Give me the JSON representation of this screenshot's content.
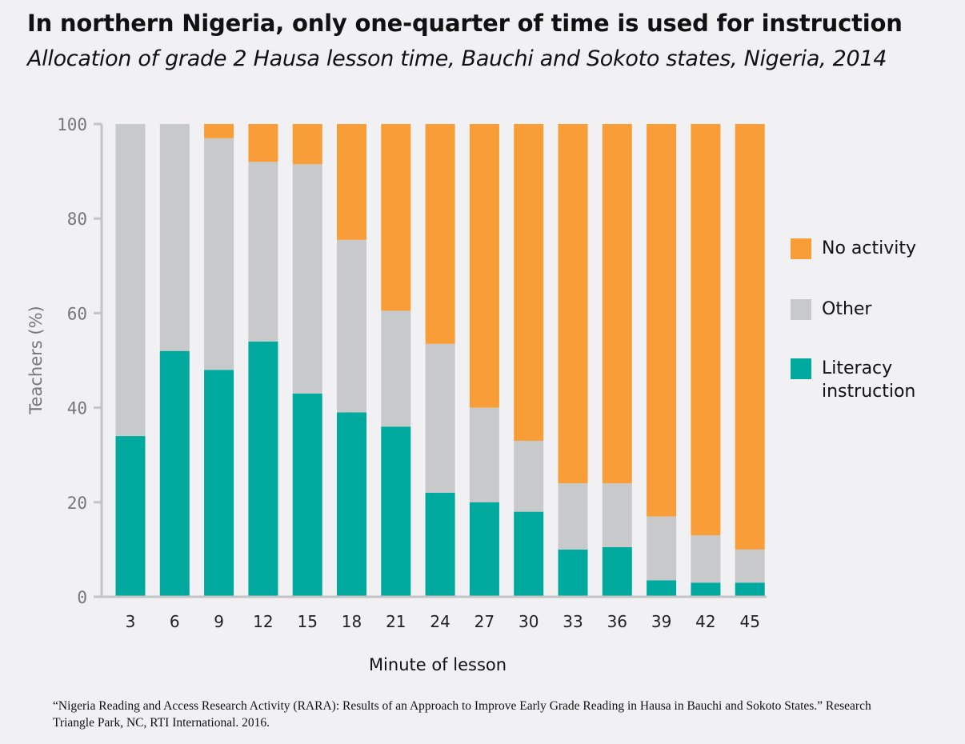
{
  "chart_data": {
    "type": "bar",
    "stacked": true,
    "title": "In northern Nigeria, only one-quarter of time is used for instruction",
    "subtitle": "Allocation of grade 2 Hausa lesson time, Bauchi and Sokoto states, Nigeria, 2014",
    "xlabel": "Minute of lesson",
    "ylabel": "Teachers (%)",
    "ylim": [
      0,
      100
    ],
    "yticks": [
      0,
      20,
      40,
      60,
      80,
      100
    ],
    "grid": false,
    "legend_position": "right",
    "categories": [
      "3",
      "6",
      "9",
      "12",
      "15",
      "18",
      "21",
      "24",
      "27",
      "30",
      "33",
      "36",
      "39",
      "42",
      "45"
    ],
    "series": [
      {
        "name": "Literacy instruction",
        "color": "#00a99d",
        "values": [
          34,
          52,
          48,
          54,
          43,
          39,
          36,
          22,
          20,
          18,
          10,
          10.5,
          3.5,
          3,
          3
        ]
      },
      {
        "name": "Other",
        "color": "#c8c9cb",
        "values": [
          66,
          48,
          49,
          38,
          48.5,
          36.5,
          24.5,
          31.5,
          20,
          15,
          14,
          13.5,
          13.5,
          10,
          7
        ]
      },
      {
        "name": "No activity",
        "color": "#f99d39",
        "values": [
          0,
          0,
          3,
          8,
          8.5,
          24.5,
          39.5,
          46.5,
          60,
          67,
          76,
          76,
          83,
          87,
          90
        ]
      }
    ],
    "legend": [
      {
        "label": "No activity",
        "color": "#f99d39"
      },
      {
        "label": "Other",
        "color": "#c8c9cb"
      },
      {
        "label": "Literacy instruction",
        "color": "#00a99d"
      }
    ]
  },
  "source_note": "“Nigeria Reading and Access Research Activity (RARA): Results of an Approach to Improve Early Grade Reading in Hausa in Bauchi and Sokoto States.” Research Triangle Park, NC, RTI International. 2016.",
  "colors": {
    "background": "#f1f1f3",
    "axis": "#c4c4c6"
  }
}
